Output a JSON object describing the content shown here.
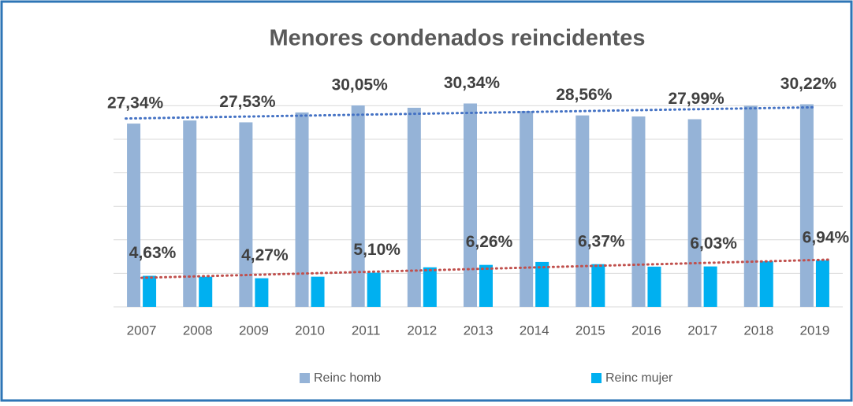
{
  "chart_data": {
    "type": "bar",
    "title": "Menores condenados reincidentes",
    "categories": [
      "2007",
      "2008",
      "2009",
      "2010",
      "2011",
      "2012",
      "2013",
      "2014",
      "2015",
      "2016",
      "2017",
      "2018",
      "2019"
    ],
    "series": [
      {
        "name": "Reinc homb",
        "color": "#95b3d7",
        "trend_color": "#4472c4",
        "values": [
          27.34,
          27.8,
          27.53,
          29.0,
          30.05,
          29.7,
          30.34,
          29.2,
          28.56,
          28.4,
          27.99,
          30.0,
          30.22
        ],
        "value_labels": [
          "27,34%",
          null,
          "27,53%",
          null,
          "30,05%",
          null,
          "30,34%",
          null,
          "28,56%",
          null,
          "27,99%",
          null,
          "30,22%"
        ]
      },
      {
        "name": "Reinc mujer",
        "color": "#00b0f0",
        "trend_color": "#c0504d",
        "values": [
          4.63,
          4.5,
          4.27,
          4.5,
          5.1,
          5.9,
          6.26,
          6.7,
          6.37,
          6.0,
          6.03,
          6.8,
          6.94
        ],
        "value_labels": [
          "4,63%",
          null,
          "4,27%",
          null,
          "5,10%",
          null,
          "6,26%",
          null,
          "6,37%",
          null,
          "6,03%",
          null,
          "6,94%"
        ]
      }
    ],
    "ylim": [
      0,
      35
    ],
    "yticks": [
      0,
      5,
      10,
      15,
      20,
      25,
      30
    ],
    "grid": true,
    "trendline": true,
    "legend": "bottom"
  }
}
